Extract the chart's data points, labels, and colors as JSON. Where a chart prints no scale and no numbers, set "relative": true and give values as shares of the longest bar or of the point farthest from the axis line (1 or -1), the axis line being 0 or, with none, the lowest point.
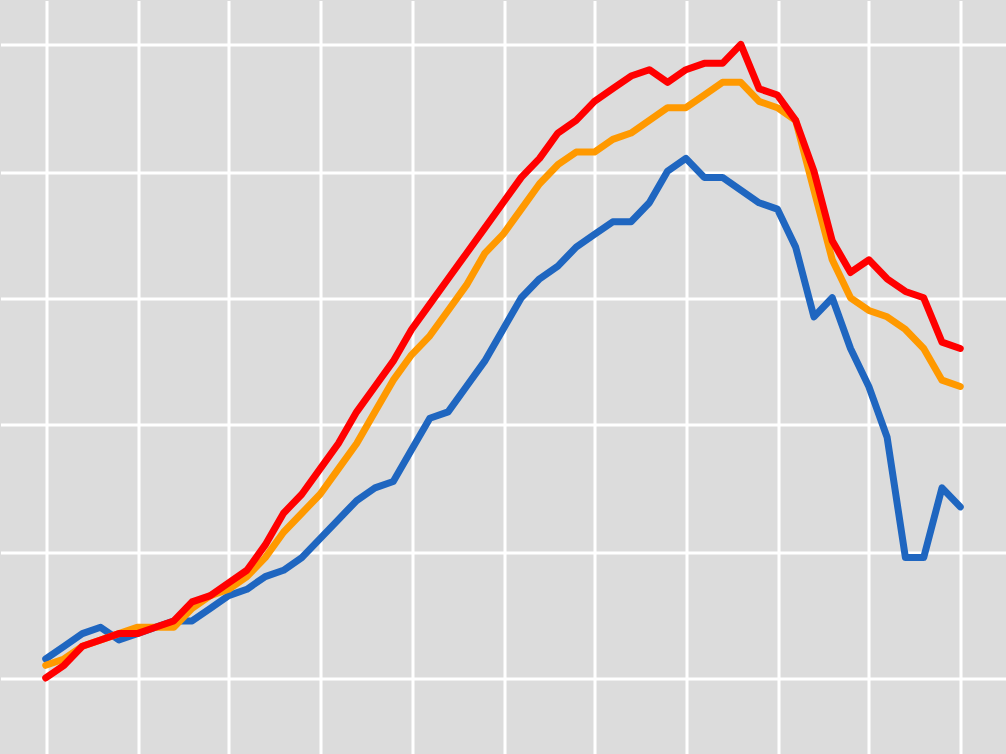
{
  "chart_data": {
    "type": "line",
    "relative": true,
    "grid": true,
    "line_style": "solid",
    "marker": "none",
    "categories": [
      null,
      null,
      null,
      null,
      null,
      null,
      null,
      null,
      null,
      null,
      null,
      null,
      null,
      null,
      null,
      null,
      null,
      null,
      null,
      null,
      null,
      null,
      null,
      null,
      null,
      null,
      null,
      null,
      null,
      null,
      null,
      null,
      null,
      null,
      null,
      null,
      null,
      null,
      null,
      null,
      null,
      null,
      null,
      null,
      null,
      null,
      null,
      null,
      null,
      null,
      null
    ],
    "series": [
      {
        "color": "#1f66c0",
        "values": [
          0.03,
          0.05,
          0.07,
          0.08,
          0.06,
          0.07,
          0.08,
          0.09,
          0.09,
          0.11,
          0.13,
          0.14,
          0.16,
          0.17,
          0.19,
          0.22,
          0.25,
          0.28,
          0.3,
          0.31,
          0.36,
          0.41,
          0.42,
          0.46,
          0.5,
          0.55,
          0.6,
          0.63,
          0.65,
          0.68,
          0.7,
          0.72,
          0.72,
          0.75,
          0.8,
          0.82,
          0.79,
          0.79,
          0.77,
          0.75,
          0.74,
          0.68,
          0.57,
          0.6,
          0.52,
          0.46,
          0.38,
          0.19,
          0.19,
          0.3,
          0.27
        ]
      },
      {
        "color": "#ff9900",
        "values": [
          0.02,
          0.03,
          0.05,
          0.06,
          0.07,
          0.08,
          0.08,
          0.08,
          0.11,
          0.13,
          0.14,
          0.16,
          0.19,
          0.23,
          0.26,
          0.29,
          0.33,
          0.37,
          0.42,
          0.47,
          0.51,
          0.54,
          0.58,
          0.62,
          0.67,
          0.7,
          0.74,
          0.78,
          0.81,
          0.83,
          0.83,
          0.85,
          0.86,
          0.88,
          0.9,
          0.9,
          0.92,
          0.94,
          0.94,
          0.91,
          0.9,
          0.88,
          0.77,
          0.66,
          0.6,
          0.58,
          0.57,
          0.55,
          0.52,
          0.47,
          0.46
        ]
      },
      {
        "color": "#ff0000",
        "values": [
          0.0,
          0.02,
          0.05,
          0.06,
          0.07,
          0.07,
          0.08,
          0.09,
          0.12,
          0.13,
          0.15,
          0.17,
          0.21,
          0.26,
          0.29,
          0.33,
          0.37,
          0.42,
          0.46,
          0.5,
          0.55,
          0.59,
          0.63,
          0.67,
          0.71,
          0.75,
          0.79,
          0.82,
          0.86,
          0.88,
          0.91,
          0.93,
          0.95,
          0.96,
          0.94,
          0.96,
          0.97,
          0.97,
          1.0,
          0.93,
          0.92,
          0.88,
          0.8,
          0.69,
          0.64,
          0.66,
          0.63,
          0.61,
          0.6,
          0.53,
          0.52
        ]
      }
    ]
  }
}
